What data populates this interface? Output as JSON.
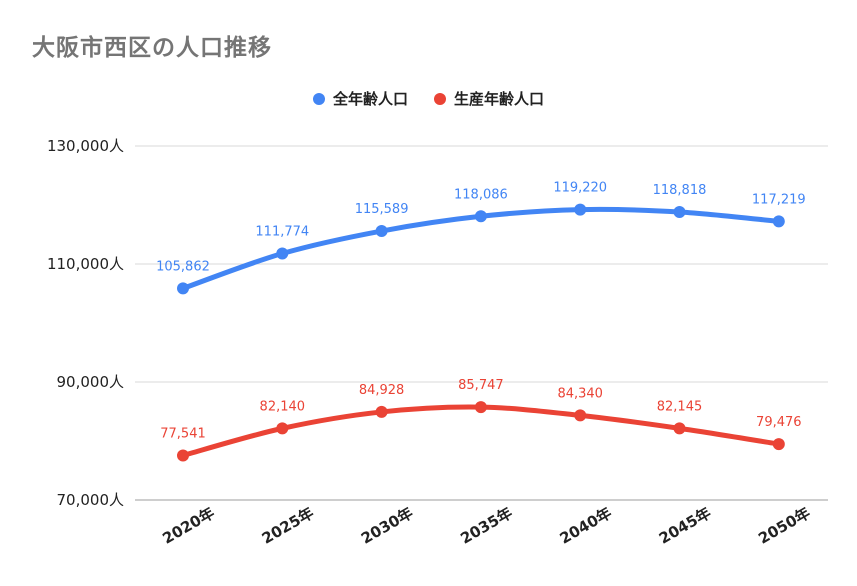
{
  "title": "大阪市西区の人口推移",
  "colors": {
    "total": "#4285f4",
    "working": "#ea4335",
    "grid": "#d9d9d9"
  },
  "chart_data": {
    "type": "line",
    "title": "大阪市西区の人口推移",
    "categories": [
      "2020年",
      "2025年",
      "2030年",
      "2035年",
      "2040年",
      "2045年",
      "2050年"
    ],
    "series": [
      {
        "name": "全年齢人口",
        "values": [
          105862,
          111774,
          115589,
          118086,
          119220,
          118818,
          117219
        ],
        "labels": [
          "105,862",
          "111,774",
          "115,589",
          "118,086",
          "119,220",
          "118,818",
          "117,219"
        ]
      },
      {
        "name": "生産年齢人口",
        "values": [
          77541,
          82140,
          84928,
          85747,
          84340,
          82145,
          79476
        ],
        "labels": [
          "77,541",
          "82,140",
          "84,928",
          "85,747",
          "84,340",
          "82,145",
          "79,476"
        ]
      }
    ],
    "yticks": [
      70000,
      90000,
      110000,
      130000
    ],
    "ytick_labels": [
      "70,000人",
      "90,000人",
      "110,000人",
      "130,000人"
    ],
    "ylim": [
      70000,
      130000
    ],
    "grid": true,
    "legend_position": "top-center"
  }
}
